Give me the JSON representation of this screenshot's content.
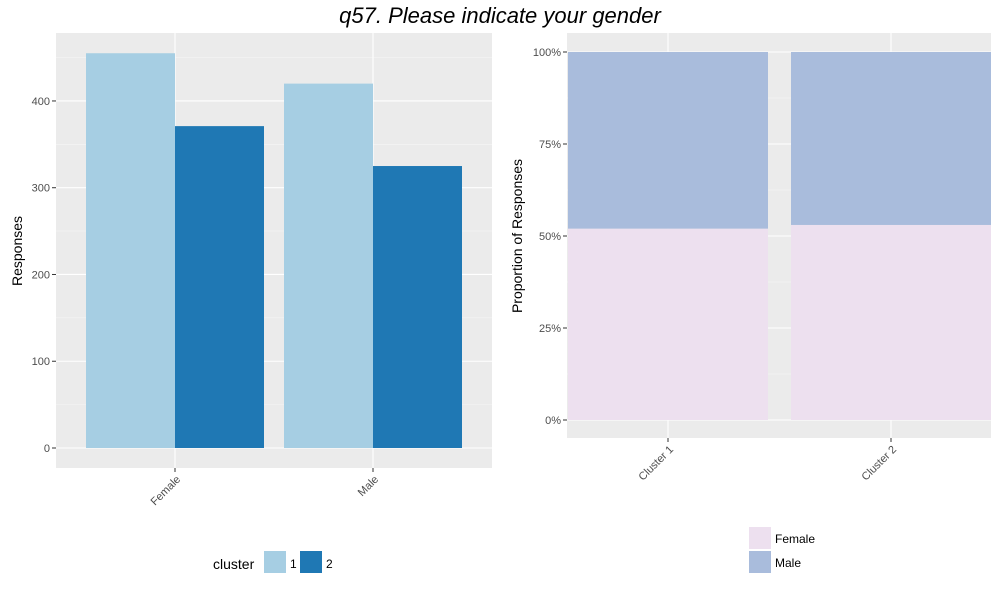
{
  "title": "q57. Please indicate your gender",
  "chart_data": [
    {
      "type": "bar",
      "categories": [
        "Female",
        "Male"
      ],
      "series": [
        {
          "name": "1",
          "color": "#a6cee3",
          "values": [
            455,
            420
          ]
        },
        {
          "name": "2",
          "color": "#1f78b4",
          "values": [
            371,
            325
          ]
        }
      ],
      "ylabel": "Responses",
      "xlabel": "",
      "ylim": [
        0,
        470
      ],
      "yticks": [
        0,
        100,
        200,
        300,
        400
      ],
      "ytick_labels": [
        "0",
        "100",
        "200",
        "300",
        "400"
      ],
      "legend": {
        "title": "cluster",
        "position": "bottom",
        "items": [
          "1",
          "2"
        ]
      },
      "grid": true
    },
    {
      "type": "bar",
      "stacked": true,
      "categories": [
        "Cluster 1",
        "Cluster 2"
      ],
      "series": [
        {
          "name": "Female",
          "color": "#ede0ef",
          "values": [
            0.52,
            0.53
          ]
        },
        {
          "name": "Male",
          "color": "#a9bcdc",
          "values": [
            0.48,
            0.47
          ]
        }
      ],
      "ylabel": "Proportion of Responses",
      "xlabel": "",
      "ylim": [
        0,
        1
      ],
      "yticks": [
        0,
        0.25,
        0.5,
        0.75,
        1
      ],
      "ytick_labels": [
        "0%",
        "25%",
        "50%",
        "75%",
        "100%"
      ],
      "legend": {
        "title": "",
        "position": "bottom",
        "items": [
          "Female",
          "Male"
        ]
      },
      "grid": true
    }
  ]
}
